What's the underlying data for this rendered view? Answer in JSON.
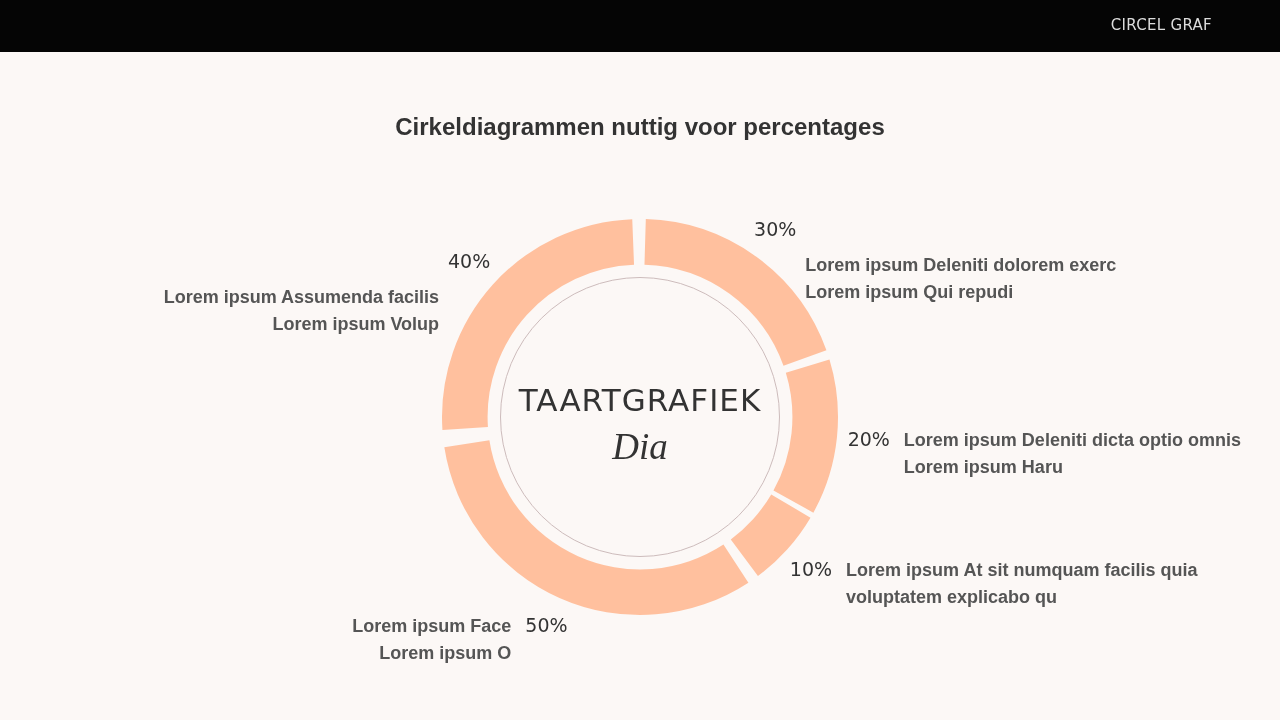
{
  "chart_data": {
    "type": "donut",
    "title": "Cirkeldiagrammen nuttig voor percentages",
    "categories": [
      "Lorem ipsum Deleniti dolorem exerc\nLorem ipsum Qui repudi",
      "Lorem ipsum Deleniti dicta optio omnis\nLorem ipsum Haru",
      "Lorem ipsum At sit numquam facilis quia\nvoluptatem explicabo qu",
      "Lorem ipsum Face\nLorem ipsum O",
      "Lorem ipsum Assumenda facilis\nLorem ipsum Volup"
    ],
    "values": [
      30,
      20,
      10,
      50,
      40
    ],
    "value_labels": [
      "30%",
      "20%",
      "10%",
      "50%",
      "40%"
    ],
    "colors": [
      "#ffc09e",
      "#ffc09e",
      "#ffc09e",
      "#ffc09e",
      "#ffc09e"
    ],
    "annotations": [
      "CIRCEL GRAF",
      "TAARTGRAFIEK",
      "Dia"
    ]
  }
}
